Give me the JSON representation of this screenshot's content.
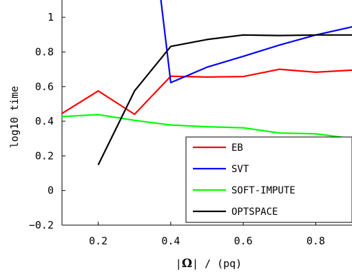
{
  "chart_data": {
    "type": "line",
    "xlabel_parts": {
      "open_bar": "|",
      "symbol": "Ω",
      "close_bar": "|",
      "rest": " / (pq)"
    },
    "ylabel": "log10 time",
    "xlim": [
      0.1,
      0.9
    ],
    "ylim": [
      -0.2,
      1.1
    ],
    "xticks": [
      0.2,
      0.4,
      0.6,
      0.8
    ],
    "xtick_labels": [
      "0.2",
      "0.4",
      "0.6",
      "0.8"
    ],
    "yticks": [
      -0.2,
      0,
      0.2,
      0.4,
      0.6,
      0.8,
      1
    ],
    "ytick_labels": [
      "−0.2",
      "0",
      "0.2",
      "0.4",
      "0.6",
      "0.8",
      "1"
    ],
    "legend_position": "lower-right",
    "series": [
      {
        "name": "EB",
        "color": "#ff0000",
        "x": [
          0.1,
          0.2,
          0.3,
          0.4,
          0.5,
          0.6,
          0.7,
          0.8,
          0.9
        ],
        "y": [
          0.445,
          0.575,
          0.44,
          0.66,
          0.655,
          0.658,
          0.7,
          0.683,
          0.695
        ]
      },
      {
        "name": "SVT",
        "color": "#0000ff",
        "x": [
          0.35,
          0.4,
          0.5,
          0.6,
          0.7,
          0.8,
          0.9
        ],
        "y": [
          1.5,
          0.623,
          0.712,
          0.775,
          0.84,
          0.898,
          0.945
        ]
      },
      {
        "name": "SOFT-IMPUTE",
        "color": "#00ff00",
        "x": [
          0.1,
          0.2,
          0.3,
          0.4,
          0.5,
          0.6,
          0.7,
          0.8,
          0.9
        ],
        "y": [
          0.427,
          0.438,
          0.405,
          0.378,
          0.368,
          0.362,
          0.332,
          0.327,
          0.3
        ]
      },
      {
        "name": "OPTSPACE",
        "color": "#000000",
        "x": [
          0.2,
          0.3,
          0.4,
          0.5,
          0.6,
          0.7,
          0.8,
          0.9
        ],
        "y": [
          0.148,
          0.575,
          0.832,
          0.872,
          0.898,
          0.895,
          0.898,
          0.898
        ]
      }
    ]
  }
}
